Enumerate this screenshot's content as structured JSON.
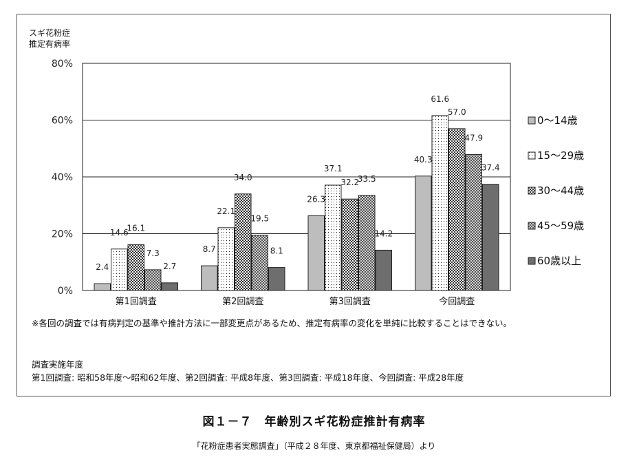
{
  "chart_data": {
    "type": "bar",
    "ylabel_lines": [
      "スギ花粉症",
      "推定有病率"
    ],
    "ylim": [
      0,
      80
    ],
    "yticks": [
      "0%",
      "20%",
      "40%",
      "60%",
      "80%"
    ],
    "categories": [
      "第1回調査",
      "第2回調査",
      "第3回調査",
      "今回調査"
    ],
    "series": [
      {
        "name": "0〜14歳",
        "values": [
          2.4,
          8.7,
          26.3,
          40.3
        ],
        "labels": [
          "2.4",
          "8.7",
          "26.3",
          "40.3"
        ],
        "color": "#bdbdbd",
        "pattern": "solid-light"
      },
      {
        "name": "15〜29歳",
        "values": [
          14.6,
          22.1,
          37.1,
          61.6
        ],
        "labels": [
          "14.6",
          "22.1",
          "37.1",
          "61.6"
        ],
        "color": "#ffffff",
        "pattern": "dots"
      },
      {
        "name": "30〜44歳",
        "values": [
          16.1,
          34.0,
          32.2,
          57.0
        ],
        "labels": [
          "16.1",
          "34.0",
          "32.2",
          "57.0"
        ],
        "color": "#ffffff",
        "pattern": "checker"
      },
      {
        "name": "45〜59歳",
        "values": [
          7.3,
          19.5,
          33.5,
          47.9
        ],
        "labels": [
          "7.3",
          "19.5",
          "33.5",
          "47.9"
        ],
        "color": "#9a9a9a",
        "pattern": "checker-dark"
      },
      {
        "name": "60歳以上",
        "values": [
          2.7,
          8.1,
          14.2,
          37.4
        ],
        "labels": [
          "2.7",
          "8.1",
          "14.2",
          "37.4"
        ],
        "color": "#6e6e6e",
        "pattern": "solid-dark"
      }
    ],
    "grid": true,
    "legend": "right"
  },
  "note": "※各回の調査では有病判定の基準や推計方法に一部変更点があるため、推定有病率の変化を単純に比較することはできない。",
  "impl": {
    "heading": "調査実施年度",
    "detail": "第1回調査: 昭和58年度〜昭和62年度、第2回調査: 平成8年度、第3回調査: 平成18年度、今回調査: 平成28年度"
  },
  "figure": {
    "title": "図１－７　年齢別スギ花粉症推計有病率",
    "source": "「花粉症患者実態調査」（平成２８年度、東京都福祉保健局）より"
  }
}
